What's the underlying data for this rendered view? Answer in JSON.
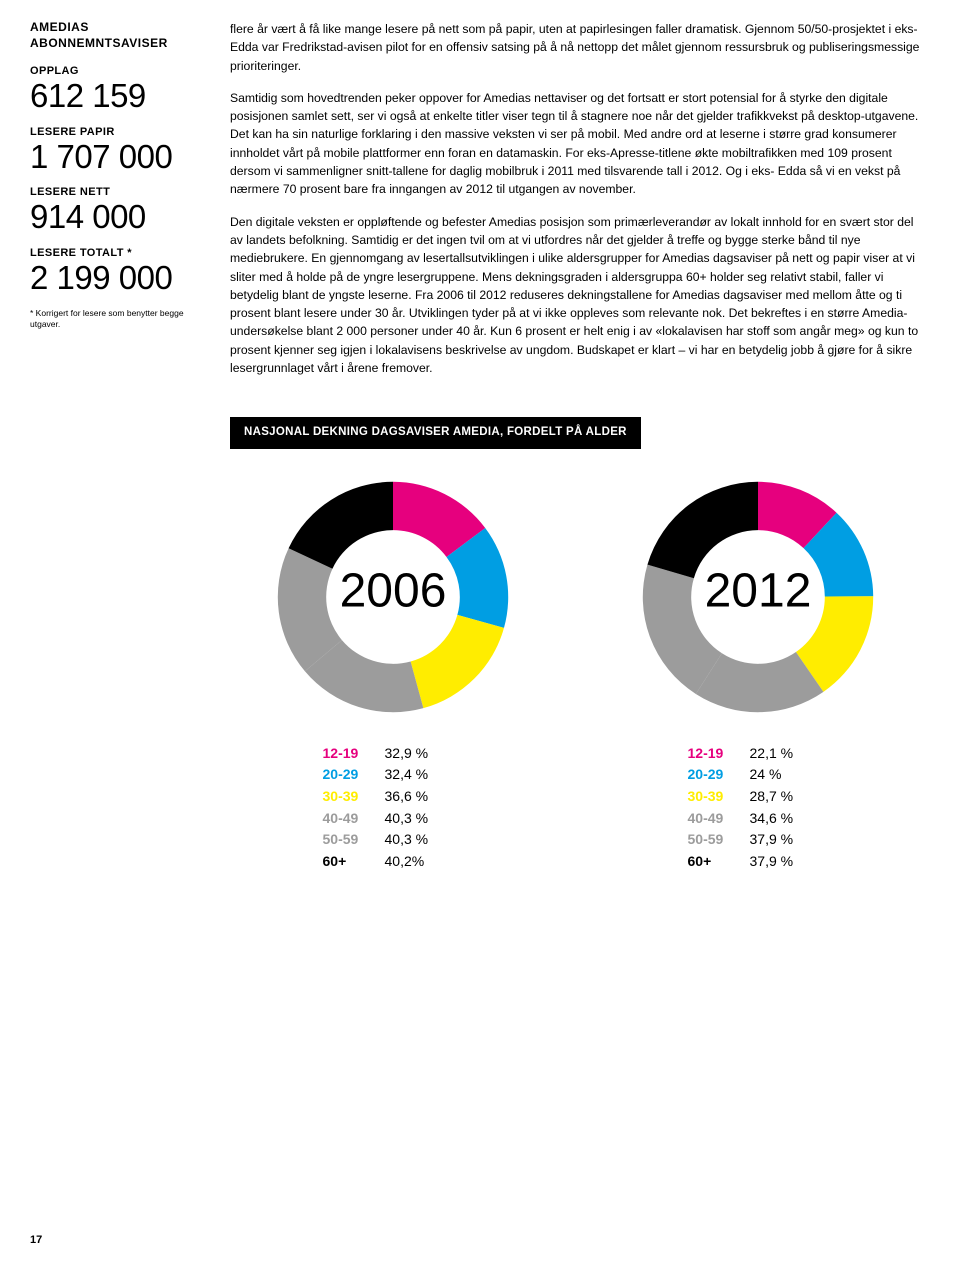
{
  "sidebar": {
    "header_l1": "AMEDIAS",
    "header_l2": "ABONNEMNTSAVISER",
    "stats": [
      {
        "label": "OPPLAG",
        "value": "612 159"
      },
      {
        "label": "LESERE PAPIR",
        "value": "1 707 000"
      },
      {
        "label": "LESERE NETT",
        "value": "914 000"
      },
      {
        "label": "LESERE TOTALT *",
        "value": "2 199 000"
      }
    ],
    "footnote": "* Korrigert for lesere som benytter begge utgaver."
  },
  "main": {
    "p1": "flere år vært å få like mange lesere på nett som på papir, uten at papirlesingen faller dramatisk. Gjennom 50/50-prosjektet i eks-Edda var Fredrikstad-avisen pilot for en offensiv satsing på å nå nettopp det målet gjennom ressursbruk og publiseringsmessige prioriteringer.",
    "p2": "Samtidig som hovedtrenden peker oppover for Amedias nettaviser og det fortsatt er stort potensial for å styrke den digitale posisjonen samlet sett, ser vi også at enkelte titler viser tegn til å stagnere noe når det gjelder trafikkvekst på desktop-utgavene. Det kan ha sin naturlige forklaring i den massive veksten vi ser på mobil. Med andre ord at leserne i større grad konsumerer innholdet vårt på mobile plattformer enn foran en datamaskin. For eks-Apresse-titlene økte mobiltrafikken med 109 prosent dersom vi sammenligner snitt-tallene for daglig mobilbruk i 2011 med tilsvarende tall i 2012. Og i eks- Edda så vi en vekst på nærmere 70 prosent bare fra inngangen av 2012 til utgangen av november.",
    "p3": "Den digitale veksten er oppløftende og befester Amedias posisjon som primærleverandør av lokalt innhold for en svært stor del av landets befolkning. Samtidig er det ingen tvil om at vi utfordres når det gjelder å treffe og bygge sterke bånd til nye mediebrukere. En gjennomgang av lesertallsutviklingen i ulike aldersgrupper for Amedias dagsaviser på nett og papir viser at vi sliter med å holde på de yngre lesergruppene. Mens dekningsgraden i aldersgruppa 60+ holder seg relativt stabil, faller vi betydelig blant de yngste leserne. Fra 2006 til 2012 reduseres dekningstallene for Amedias dagsaviser med mellom åtte og ti prosent blant lesere under 30 år. Utviklingen tyder på at vi ikke oppleves som relevante nok. Det bekreftes i en større Amedia-undersøkelse blant 2 000 personer under 40 år. Kun 6 prosent er helt enig i av «lokalavisen har stoff som angår meg» og kun to prosent kjenner seg igjen i lokalavisens beskrivelse av ungdom. Budskapet er klart – vi har en betydelig jobb å gjøre for å sikre lesergrunnlaget vårt i årene fremover."
  },
  "chart": {
    "title": "NASJONAL DEKNING DAGSAVISER AMEDIA, FORDELT PÅ ALDER",
    "colors": {
      "12-19": "#e6007e",
      "20-29": "#009ee3",
      "30-39": "#ffed00",
      "40-49": "#9c9c9c",
      "50-59": "#9c9c9c",
      "60+": "#000000"
    },
    "background": "#ffffff",
    "donut_inner_ratio": 0.58,
    "left": {
      "year": "2006",
      "data": [
        {
          "key": "12-19",
          "value": 32.9,
          "label": "32,9 %"
        },
        {
          "key": "20-29",
          "value": 32.4,
          "label": "32,4 %"
        },
        {
          "key": "30-39",
          "value": 36.6,
          "label": "36,6 %"
        },
        {
          "key": "40-49",
          "value": 40.3,
          "label": "40,3 %"
        },
        {
          "key": "50-59",
          "value": 40.3,
          "label": "40,3 %"
        },
        {
          "key": "60+",
          "value": 40.2,
          "label": "40,2%"
        }
      ]
    },
    "right": {
      "year": "2012",
      "data": [
        {
          "key": "12-19",
          "value": 22.1,
          "label": "22,1 %"
        },
        {
          "key": "20-29",
          "value": 24.0,
          "label": "24 %"
        },
        {
          "key": "30-39",
          "value": 28.7,
          "label": "28,7 %"
        },
        {
          "key": "40-49",
          "value": 34.6,
          "label": "34,6 %"
        },
        {
          "key": "50-59",
          "value": 37.9,
          "label": "37,9 %"
        },
        {
          "key": "60+",
          "value": 37.9,
          "label": "37,9 %"
        }
      ]
    }
  },
  "page_number": "17"
}
